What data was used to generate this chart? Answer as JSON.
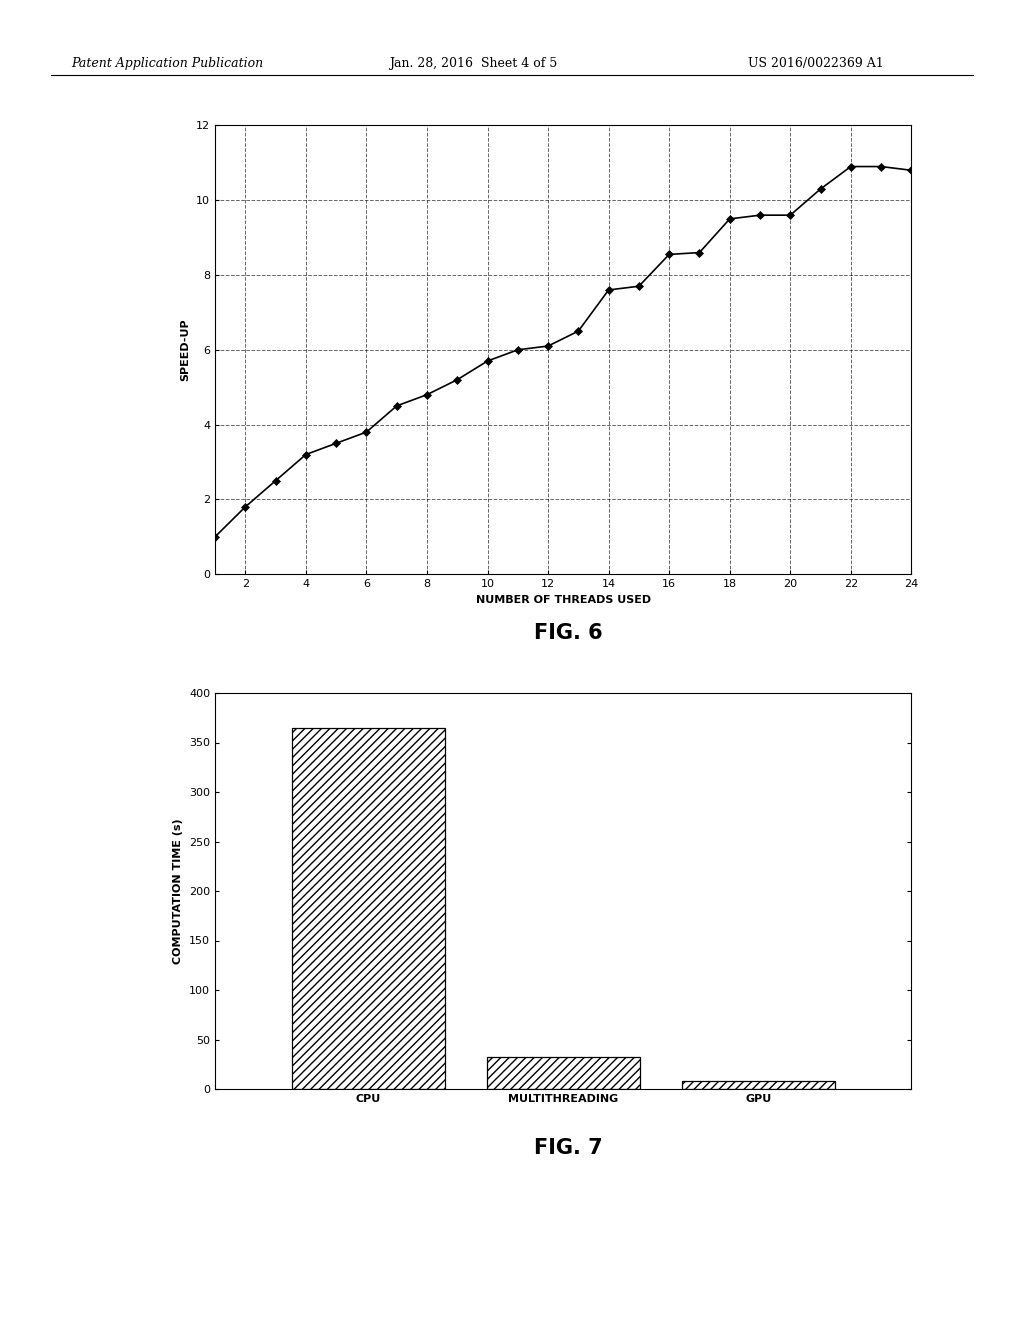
{
  "fig6": {
    "x": [
      1,
      2,
      3,
      4,
      5,
      6,
      7,
      8,
      9,
      10,
      11,
      12,
      13,
      14,
      15,
      16,
      17,
      18,
      19,
      20,
      21,
      22,
      23,
      24
    ],
    "y": [
      1.0,
      1.8,
      2.5,
      3.2,
      3.5,
      3.8,
      4.5,
      4.8,
      5.2,
      5.7,
      6.0,
      6.1,
      6.5,
      7.6,
      7.7,
      8.55,
      8.6,
      9.5,
      9.6,
      9.6,
      10.3,
      10.9,
      10.9,
      10.8
    ],
    "xlabel": "NUMBER OF THREADS USED",
    "ylabel": "SPEED-UP",
    "xlim": [
      1,
      24
    ],
    "ylim": [
      0,
      12
    ],
    "xticks": [
      2,
      4,
      6,
      8,
      10,
      12,
      14,
      16,
      18,
      20,
      22,
      24
    ],
    "yticks": [
      0,
      2,
      4,
      6,
      8,
      10,
      12
    ],
    "fig_label": "FIG. 6"
  },
  "fig7": {
    "categories": [
      "CPU",
      "MULTITHREADING",
      "GPU"
    ],
    "values": [
      365,
      32,
      8
    ],
    "ylabel": "COMPUTATION TIME (s)",
    "ylim": [
      0,
      400
    ],
    "yticks": [
      0,
      50,
      100,
      150,
      200,
      250,
      300,
      350,
      400
    ],
    "fig_label": "FIG. 7"
  },
  "header_left": "Patent Application Publication",
  "header_center": "Jan. 28, 2016  Sheet 4 of 5",
  "header_right": "US 2016/0022369 A1",
  "bg_color": "#ffffff"
}
